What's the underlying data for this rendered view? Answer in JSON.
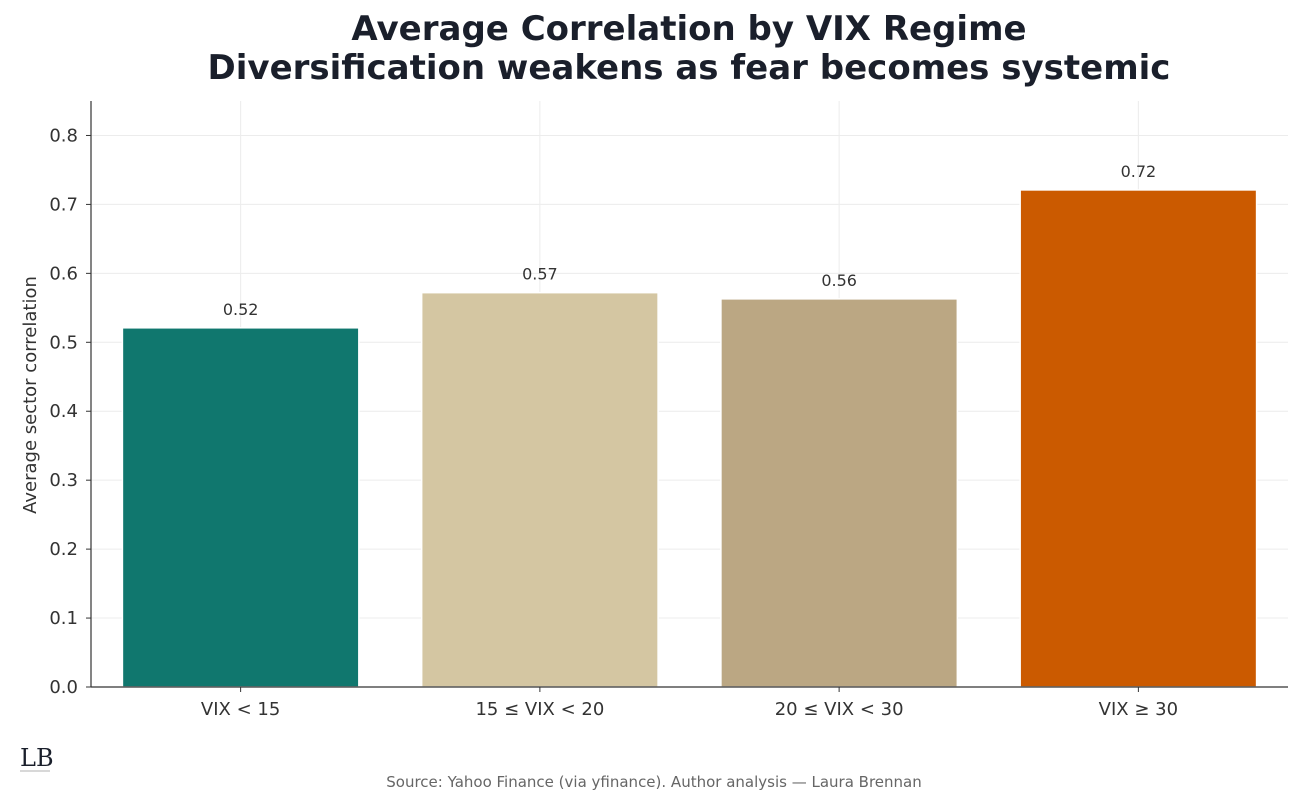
{
  "chart_data": {
    "type": "bar",
    "title_lines": [
      "Average Correlation by VIX Regime",
      "Diversification weakens as fear becomes systemic"
    ],
    "categories": [
      "VIX < 15",
      "15 ≤ VIX < 20",
      "20 ≤ VIX < 30",
      "VIX ≥ 30"
    ],
    "values": [
      0.521,
      0.572,
      0.563,
      0.721
    ],
    "value_labels": [
      "0.52",
      "0.57",
      "0.56",
      "0.72"
    ],
    "bar_colors": [
      "#10776e",
      "#d4c6a2",
      "#bba783",
      "#cb5a00"
    ],
    "xlabel": "",
    "ylabel": "Average sector correlation",
    "ylim": [
      0,
      0.85
    ],
    "yticks": [
      0.0,
      0.1,
      0.2,
      0.3,
      0.4,
      0.5,
      0.6,
      0.7,
      0.8
    ],
    "ytick_labels": [
      "0.0",
      "0.1",
      "0.2",
      "0.3",
      "0.4",
      "0.5",
      "0.6",
      "0.7",
      "0.8"
    ],
    "grid": true,
    "source": "Source: Yahoo Finance (via yfinance). Author analysis — Laura Brennan",
    "logo_text": "LB"
  }
}
